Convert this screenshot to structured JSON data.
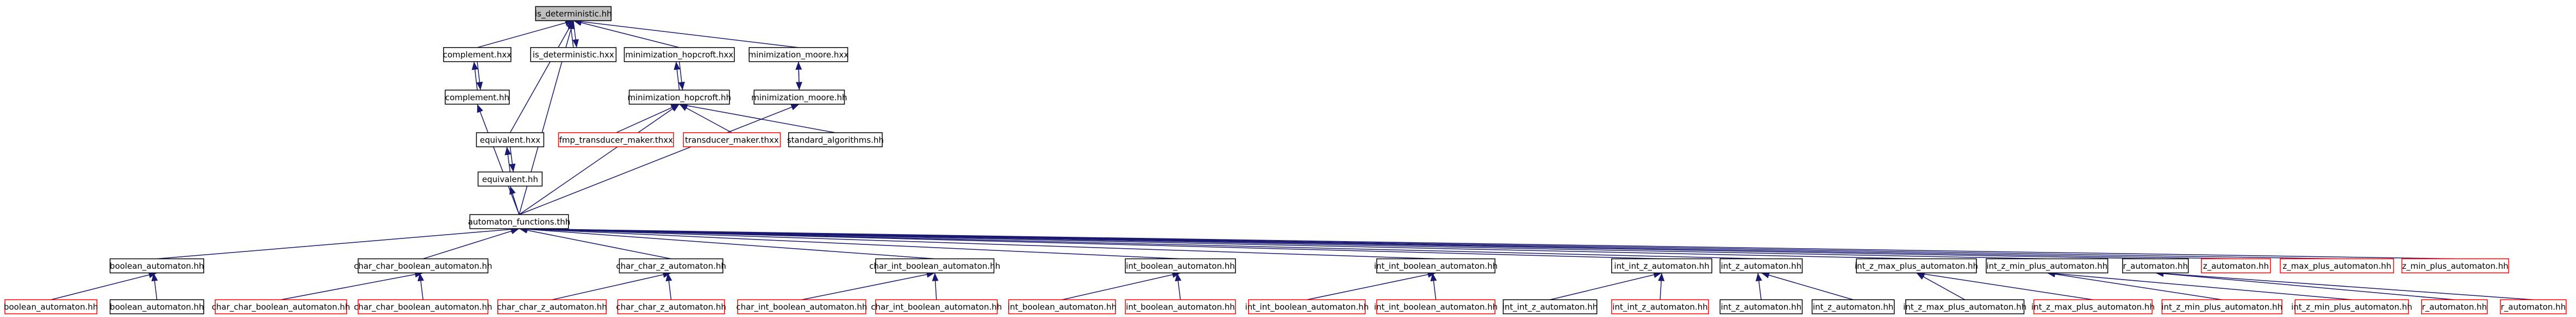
{
  "nodes": [
    {
      "label": "is_deterministic.hh"
    },
    {
      "label": "complement.hxx"
    },
    {
      "label": "is_deterministic.hxx"
    },
    {
      "label": "minimization_hopcroft.hxx"
    },
    {
      "label": "minimization_moore.hxx"
    },
    {
      "label": "complement.hh"
    },
    {
      "label": "minimization_hopcroft.hh"
    },
    {
      "label": "minimization_moore.hh"
    },
    {
      "label": "equivalent.hxx"
    },
    {
      "label": "fmp_transducer_maker.thxx"
    },
    {
      "label": "transducer_maker.thxx"
    },
    {
      "label": "standard_algorithms.hh"
    },
    {
      "label": "equivalent.hh"
    },
    {
      "label": "automaton_functions.thh"
    },
    {
      "label": "boolean_automaton.hh"
    },
    {
      "label": "char_char_boolean_automaton.hh"
    },
    {
      "label": "char_char_z_automaton.hh"
    },
    {
      "label": "char_int_boolean_automaton.hh"
    },
    {
      "label": "int_boolean_automaton.hh"
    },
    {
      "label": "int_int_boolean_automaton.hh"
    },
    {
      "label": "int_int_z_automaton.hh"
    },
    {
      "label": "int_z_automaton.hh"
    },
    {
      "label": "int_z_max_plus_automaton.hh"
    },
    {
      "label": "int_z_min_plus_automaton.hh"
    },
    {
      "label": "r_automaton.hh"
    },
    {
      "label": "z_automaton.hh"
    },
    {
      "label": "z_max_plus_automaton.hh"
    },
    {
      "label": "z_min_plus_automaton.hh"
    },
    {
      "label": "boolean_automaton.hh"
    },
    {
      "label": "boolean_automaton.hh"
    },
    {
      "label": "char_char_boolean_automaton.hh"
    },
    {
      "label": "char_char_boolean_automaton.hh"
    },
    {
      "label": "char_char_z_automaton.hh"
    },
    {
      "label": "char_char_z_automaton.hh"
    },
    {
      "label": "char_int_boolean_automaton.hh"
    },
    {
      "label": "char_int_boolean_automaton.hh"
    },
    {
      "label": "int_boolean_automaton.hh"
    },
    {
      "label": "int_boolean_automaton.hh"
    },
    {
      "label": "int_int_boolean_automaton.hh"
    },
    {
      "label": "int_int_boolean_automaton.hh"
    },
    {
      "label": "int_int_z_automaton.hh"
    },
    {
      "label": "int_int_z_automaton.hh"
    },
    {
      "label": "int_z_automaton.hh"
    },
    {
      "label": "int_z_automaton.hh"
    },
    {
      "label": "int_z_max_plus_automaton.hh"
    },
    {
      "label": "int_z_max_plus_automaton.hh"
    },
    {
      "label": "int_z_min_plus_automaton.hh"
    },
    {
      "label": "int_z_min_plus_automaton.hh"
    },
    {
      "label": "r_automaton.hh"
    },
    {
      "label": "r_automaton.hh"
    }
  ]
}
